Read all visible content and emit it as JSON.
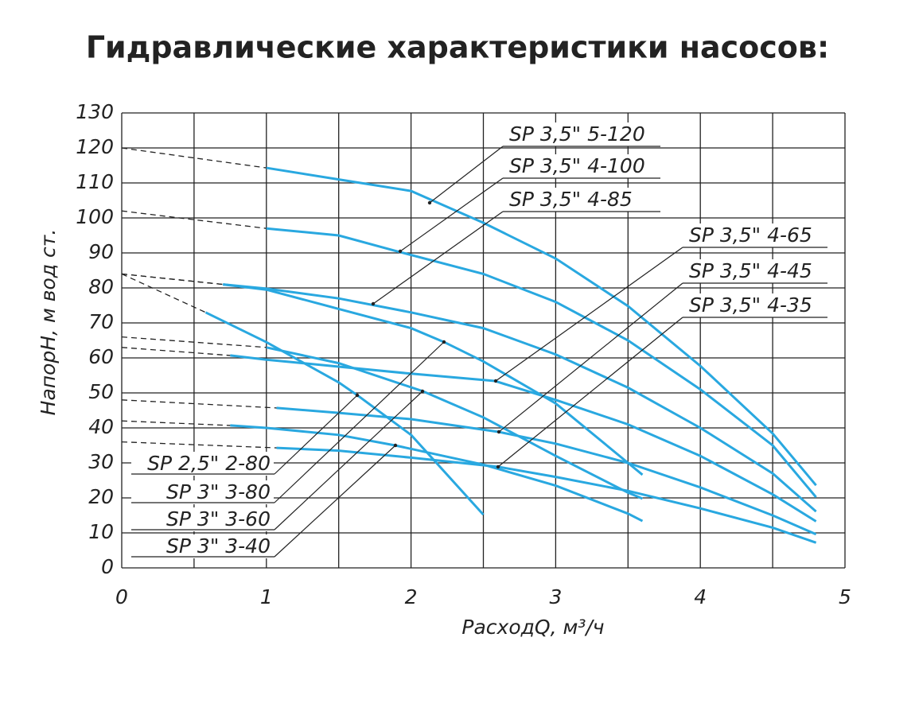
{
  "chart_data": {
    "type": "line",
    "title": "Гидравлические характеристики насосов:",
    "x_label": "РасходQ, м³/ч",
    "y_label": "НапорН, м вод ст.",
    "xlim": [
      0,
      5
    ],
    "ylim": [
      0,
      130
    ],
    "xticks": [
      0,
      1,
      2,
      3,
      4,
      5
    ],
    "yticks": [
      0,
      10,
      20,
      30,
      40,
      50,
      60,
      70,
      80,
      90,
      100,
      110,
      120,
      130
    ],
    "grid": true,
    "series": [
      {
        "name": "SP 3,5\" 5-120",
        "color": "#29a8e0",
        "shutoff": 120,
        "x": [
          1,
          1.5,
          2,
          2.5,
          3,
          3.5,
          4,
          4.5,
          4.8
        ],
        "values": [
          114.3,
          111,
          107.7,
          98.6,
          88.4,
          74.8,
          57.7,
          38.4,
          23.6
        ]
      },
      {
        "name": "SP 3,5\" 4-100",
        "color": "#29a8e0",
        "shutoff": 102,
        "x": [
          1,
          1.5,
          1.9,
          2.5,
          3,
          3.5,
          4,
          4.5,
          4.8
        ],
        "values": [
          97,
          95,
          90.5,
          84,
          76,
          65,
          51,
          35,
          20.2
        ]
      },
      {
        "name": "SP 3,5\" 4-85",
        "color": "#29a8e0",
        "shutoff": 84,
        "x": [
          0.7,
          1,
          1.5,
          2,
          2.5,
          3,
          3.5,
          4,
          4.5,
          4.8
        ],
        "values": [
          81,
          79.8,
          77,
          73,
          68.5,
          61,
          51.5,
          40,
          27,
          16.1
        ]
      },
      {
        "name": "SP 3,5\" 4-65",
        "color": "#29a8e0",
        "shutoff": 63,
        "x": [
          0.75,
          1,
          1.5,
          2,
          2.58,
          3,
          3.5,
          4,
          4.5,
          4.8
        ],
        "values": [
          60.7,
          59.5,
          57.5,
          55.5,
          53.4,
          48,
          41,
          32,
          21,
          13.3
        ]
      },
      {
        "name": "SP 3,5\" 4-45",
        "color": "#29a8e0",
        "shutoff": 48,
        "x": [
          1.07,
          1.5,
          2,
          2.6,
          3,
          3.5,
          4,
          4.5,
          4.8
        ],
        "values": [
          45.7,
          44.3,
          42.5,
          38.9,
          35.5,
          30,
          23,
          15,
          9.6
        ]
      },
      {
        "name": "SP 3,5\" 4-35",
        "color": "#29a8e0",
        "shutoff": 36,
        "x": [
          1.07,
          1.5,
          2,
          2.6,
          3,
          3.5,
          4,
          4.5,
          4.8
        ],
        "values": [
          34.3,
          33.5,
          31.5,
          28.9,
          26,
          22,
          17,
          11.5,
          7.2
        ]
      },
      {
        "name": "SP 2,5\" 2-80",
        "color": "#29a8e0",
        "shutoff": 84,
        "x": [
          0.58,
          1,
          1.5,
          1.63,
          2,
          2.5
        ],
        "values": [
          73,
          64.5,
          53,
          49.3,
          38,
          15.2
        ]
      },
      {
        "name": "SP 3\" 3-80",
        "color": "#29a8e0",
        "shutoff": 84,
        "x": [
          0.7,
          1,
          1.5,
          2,
          2.23,
          2.5,
          3,
          3.5,
          3.6
        ],
        "values": [
          81,
          79.5,
          74,
          68.5,
          64.5,
          59,
          47,
          30,
          26.6
        ]
      },
      {
        "name": "SP 3\" 3-60",
        "color": "#29a8e0",
        "shutoff": 66,
        "x": [
          1,
          1.5,
          2.08,
          2.5,
          3,
          3.5,
          3.6
        ],
        "values": [
          63,
          58.5,
          50.5,
          43,
          32,
          21.5,
          19.8
        ]
      },
      {
        "name": "SP 3\" 3-40",
        "color": "#29a8e0",
        "shutoff": 42,
        "x": [
          0.75,
          1,
          1.5,
          1.89,
          2.5,
          3,
          3.5,
          3.6
        ],
        "values": [
          40.7,
          40,
          38,
          35,
          29.5,
          23.5,
          15.5,
          13.4
        ]
      }
    ]
  }
}
